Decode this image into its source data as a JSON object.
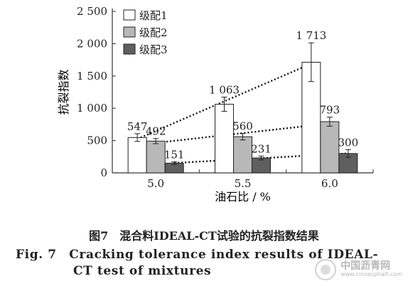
{
  "chart_data": {
    "type": "bar",
    "categories": [
      "5.0",
      "5.5",
      "6.0"
    ],
    "series": [
      {
        "name": "级配1",
        "values": [
          547,
          1063,
          1713
        ],
        "errors": [
          60,
          110,
          300
        ],
        "labels": [
          "547",
          "1 063",
          "1 713"
        ],
        "color": "#ffffff"
      },
      {
        "name": "级配2",
        "values": [
          492,
          560,
          793
        ],
        "errors": [
          40,
          50,
          70
        ],
        "labels": [
          "492",
          "560",
          "793"
        ],
        "color": "#b8b8b8"
      },
      {
        "name": "级配3",
        "values": [
          151,
          231,
          300
        ],
        "errors": [
          20,
          30,
          60
        ],
        "labels": [
          "151",
          "231",
          "300"
        ],
        "color": "#5f5f5f"
      }
    ],
    "ylim": [
      0,
      2500
    ],
    "yticks": [
      0,
      500,
      1000,
      1500,
      2000,
      2500
    ],
    "ytick_labels": [
      "0",
      "500",
      "1 000",
      "1 500",
      "2 000",
      "2 500"
    ],
    "xlabel": "油石比 / %",
    "ylabel": "抗裂指数",
    "legend_position": "top-left",
    "trendlines": "dotted linear trend line for each series"
  },
  "caption": {
    "cn": "图7　混合料IDEAL-CT试验的抗裂指数结果",
    "en_line1": "Fig. 7　Cracking tolerance index results of IDEAL-",
    "en_line2": "CT test of mixtures"
  },
  "watermark": {
    "name": "中国沥青网",
    "url": "www.sinoasphalt.com"
  }
}
